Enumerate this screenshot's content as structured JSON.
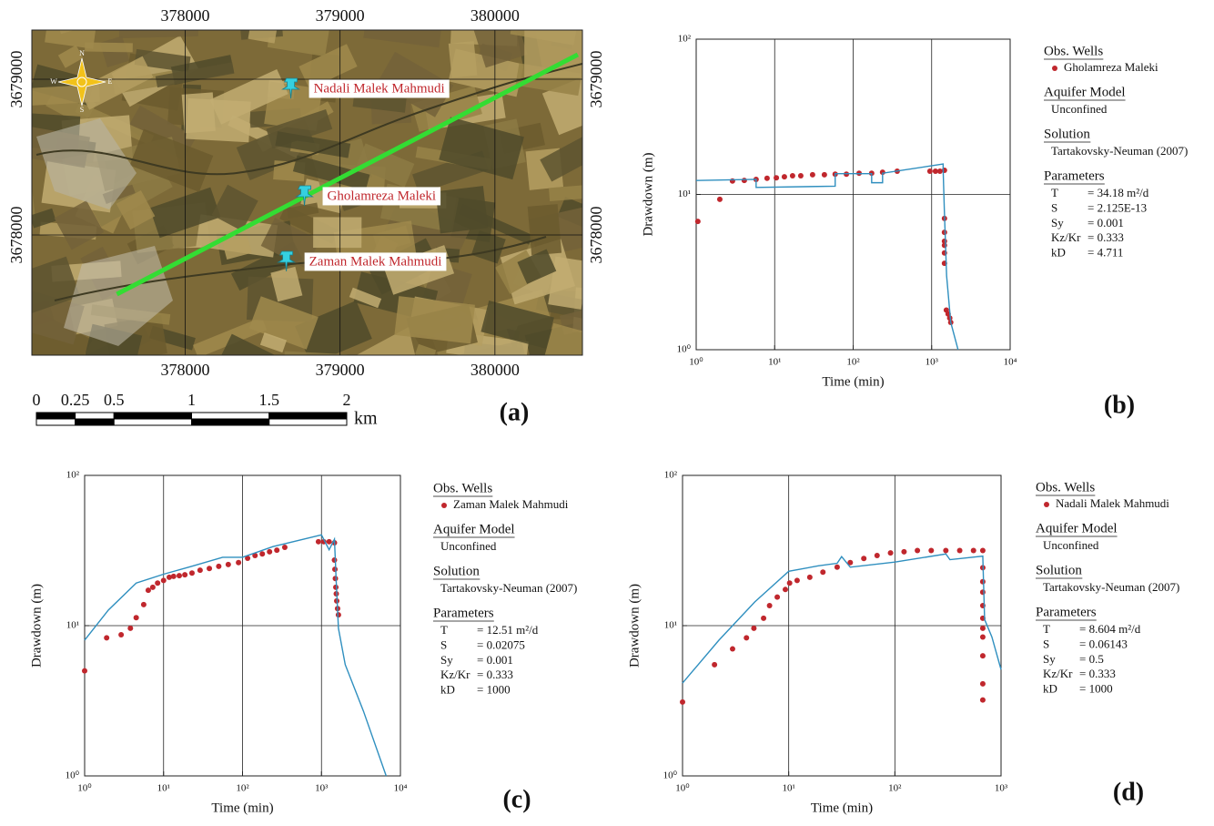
{
  "map": {
    "panel": "(a)",
    "xlim": [
      377010,
      380565
    ],
    "ylim": [
      3677228,
      3679316
    ],
    "xticks": [
      378000,
      379000,
      380000
    ],
    "yticks": [
      3679000,
      3678000
    ],
    "compass": [
      "N",
      "E",
      "S",
      "W"
    ],
    "wells": [
      {
        "name": "Nadali Malek Mahmudi",
        "x": 378688,
        "y": 3678924
      },
      {
        "name": "Gholamreza Maleki",
        "x": 378776,
        "y": 3678234
      },
      {
        "name": "Zaman Malek Mahmudi",
        "x": 378659,
        "y": 3677813
      }
    ],
    "section_line": {
      "color": "#33dd33",
      "x": [
        377559,
        380535
      ],
      "y": [
        3677620,
        3679158
      ]
    },
    "scale_bar": {
      "ticks": [
        0,
        0.25,
        0.5,
        1,
        1.5,
        2
      ],
      "unit": "km"
    }
  },
  "chart_data": [
    {
      "type": "line",
      "panel": "(b)",
      "xlabel": "Time (min)",
      "ylabel": "Drawdown (m)",
      "log_x": true,
      "log_y": true,
      "grid": true,
      "xlim": [
        1,
        10000
      ],
      "ylim": [
        1,
        100
      ],
      "xticks": [
        {
          "value": 1,
          "label": "10⁰"
        },
        {
          "value": 10,
          "label": "10¹"
        },
        {
          "value": 100,
          "label": "10²"
        },
        {
          "value": 1000,
          "label": "10³"
        },
        {
          "value": 10000,
          "label": "10⁴"
        }
      ],
      "yticks": [
        {
          "value": 1,
          "label": "10⁰"
        },
        {
          "value": 10,
          "label": "10¹"
        },
        {
          "value": 100,
          "label": "10²"
        }
      ],
      "series": [
        {
          "name": "Gholamreza Maleki",
          "color": "#c0272d",
          "marker": true,
          "x": [
            1.05,
            2.0,
            2.9,
            4.1,
            5.8,
            8.0,
            10.5,
            13.3,
            16.9,
            21.5,
            30.4,
            43,
            59,
            82,
            119,
            172,
            237,
            364,
            951,
            1117,
            1275,
            1456,
            1456,
            1456,
            1456,
            1456,
            1456,
            1456,
            1538,
            1620,
            1700,
            1750
          ],
          "values": [
            6.7,
            9.3,
            12.2,
            12.3,
            12.5,
            12.7,
            12.8,
            13.0,
            13.2,
            13.2,
            13.4,
            13.4,
            13.5,
            13.5,
            13.7,
            13.7,
            13.9,
            14.1,
            14.1,
            14.1,
            14.1,
            14.3,
            7.0,
            5.7,
            5.0,
            4.7,
            4.2,
            3.6,
            1.8,
            1.7,
            1.6,
            1.5
          ]
        },
        {
          "color": "#2f8fbf",
          "marker": false,
          "x": [
            1,
            5.8,
            5.8,
            59,
            59,
            172,
            172,
            237,
            237,
            1400,
            1400,
            1450,
            1550,
            1750,
            2170
          ],
          "values": [
            12.3,
            12.5,
            11.1,
            11.3,
            13.6,
            13.6,
            11.9,
            11.9,
            13.7,
            15.7,
            14.5,
            8,
            3.0,
            1.5,
            1.0
          ]
        }
      ],
      "legend": {
        "title": "Obs. Wells",
        "sections": [
          {
            "heading": "Aquifer Model",
            "lines": [
              "Unconfined"
            ]
          },
          {
            "heading": "Solution",
            "lines": [
              "Tartakovsky-Neuman (2007)"
            ]
          },
          {
            "heading": "Parameters",
            "rows": [
              [
                "T",
                "= 34.18 m²/d"
              ],
              [
                "S",
                "= 2.125E-13"
              ],
              [
                "Sy",
                "= 0.001"
              ],
              [
                "Kz/Kr",
                "= 0.333"
              ],
              [
                "kD",
                "= 4.711"
              ]
            ]
          }
        ]
      }
    },
    {
      "type": "line",
      "panel": "(c)",
      "xlabel": "Time (min)",
      "ylabel": "Drawdown (m)",
      "log_x": true,
      "log_y": true,
      "grid": true,
      "xlim": [
        1,
        10000
      ],
      "ylim": [
        1,
        100
      ],
      "xticks": [
        {
          "value": 1,
          "label": "10⁰"
        },
        {
          "value": 10,
          "label": "10¹"
        },
        {
          "value": 100,
          "label": "10²"
        },
        {
          "value": 1000,
          "label": "10³"
        },
        {
          "value": 10000,
          "label": "10⁴"
        }
      ],
      "yticks": [
        {
          "value": 1,
          "label": "10⁰"
        },
        {
          "value": 10,
          "label": "10¹"
        },
        {
          "value": 100,
          "label": "10²"
        }
      ],
      "series": [
        {
          "name": "Zaman Malek Mahmudi",
          "color": "#c0272d",
          "marker": true,
          "x": [
            1,
            1.9,
            2.9,
            3.8,
            4.5,
            5.6,
            6.4,
            7.3,
            8.4,
            10,
            11.8,
            13.4,
            15.8,
            18.6,
            22.9,
            29,
            38,
            50,
            66,
            89,
            116,
            144,
            178,
            220,
            272,
            343,
            915,
            1070,
            1250,
            1460,
            1460,
            1480,
            1500,
            1520,
            1540,
            1560,
            1600,
            1640
          ],
          "values": [
            5.0,
            8.3,
            8.7,
            9.6,
            11.3,
            13.8,
            17.2,
            18,
            19.2,
            20,
            21,
            21.3,
            21.5,
            21.8,
            22.4,
            23.4,
            24,
            24.8,
            25.5,
            26.3,
            28.1,
            29.3,
            30,
            31,
            31.8,
            33.2,
            36.2,
            36.2,
            36.2,
            35.6,
            27.3,
            23.7,
            20.6,
            18,
            16.3,
            14.6,
            13.0,
            11.8
          ]
        },
        {
          "color": "#2f8fbf",
          "marker": false,
          "x": [
            1,
            2,
            4.5,
            10,
            22,
            56,
            100,
            243,
            1000,
            1250,
            1460,
            1540,
            1640,
            2000,
            3400,
            6600
          ],
          "values": [
            8.0,
            12.7,
            19.2,
            22,
            24.7,
            28.5,
            28.5,
            33.6,
            40.2,
            32,
            37.6,
            19.3,
            9.6,
            5.5,
            2.7,
            1.0
          ]
        }
      ],
      "legend": {
        "title": "Obs. Wells",
        "sections": [
          {
            "heading": "Aquifer Model",
            "lines": [
              "Unconfined"
            ]
          },
          {
            "heading": "Solution",
            "lines": [
              "Tartakovsky-Neuman (2007)"
            ]
          },
          {
            "heading": "Parameters",
            "rows": [
              [
                "T",
                "= 12.51 m²/d"
              ],
              [
                "S",
                "= 0.02075"
              ],
              [
                "Sy",
                "= 0.001"
              ],
              [
                "Kz/Kr",
                "= 0.333"
              ],
              [
                "kD",
                "= 1000"
              ]
            ]
          }
        ]
      }
    },
    {
      "type": "line",
      "panel": "(d)",
      "xlabel": "Time (min)",
      "ylabel": "Drawdown (m)",
      "log_x": true,
      "log_y": true,
      "grid": true,
      "xlim": [
        1,
        1000
      ],
      "ylim": [
        1,
        100
      ],
      "xticks": [
        {
          "value": 1,
          "label": "10⁰"
        },
        {
          "value": 10,
          "label": "10¹"
        },
        {
          "value": 100,
          "label": "10²"
        },
        {
          "value": 1000,
          "label": "10³"
        }
      ],
      "yticks": [
        {
          "value": 1,
          "label": "10⁰"
        },
        {
          "value": 10,
          "label": "10¹"
        },
        {
          "value": 100,
          "label": "10²"
        }
      ],
      "series": [
        {
          "name": "Nadali Malek Mahmudi",
          "color": "#c0272d",
          "marker": true,
          "x": [
            1,
            2,
            2.96,
            4,
            4.7,
            5.8,
            6.6,
            7.8,
            9.3,
            10.2,
            12,
            15.8,
            21,
            28.6,
            38,
            51,
            68,
            91,
            122,
            163,
            220,
            302,
            408,
            550,
            673,
            673,
            673,
            673,
            673,
            673,
            673,
            673,
            673,
            673,
            673
          ],
          "values": [
            3.1,
            5.5,
            7.0,
            8.3,
            9.6,
            11.2,
            13.6,
            15.5,
            17.4,
            19.2,
            20,
            21,
            22.7,
            24.5,
            26.3,
            28,
            29.3,
            30.5,
            31,
            31.6,
            31.6,
            31.6,
            31.6,
            31.6,
            31.6,
            24.3,
            19.6,
            16.7,
            13.6,
            11.2,
            9.6,
            8.4,
            6.3,
            4.1,
            3.2
          ]
        },
        {
          "color": "#2f8fbf",
          "marker": false,
          "x": [
            1,
            2.2,
            4.8,
            10,
            19,
            28.6,
            31.5,
            38,
            100,
            302,
            330,
            673,
            700,
            820,
            1000
          ],
          "values": [
            4.15,
            8.0,
            14.4,
            23,
            25,
            26,
            28.8,
            24.5,
            26.5,
            30,
            27.5,
            29,
            11,
            8.4,
            5.1
          ]
        }
      ],
      "legend": {
        "title": "Obs. Wells",
        "sections": [
          {
            "heading": "Aquifer Model",
            "lines": [
              "Unconfined"
            ]
          },
          {
            "heading": "Solution",
            "lines": [
              "Tartakovsky-Neuman (2007)"
            ]
          },
          {
            "heading": "Parameters",
            "rows": [
              [
                "T",
                "= 8.604 m²/d"
              ],
              [
                "S",
                "= 0.06143"
              ],
              [
                "Sy",
                "= 0.5"
              ],
              [
                "Kz/Kr",
                "= 0.333"
              ],
              [
                "kD",
                "= 1000"
              ]
            ]
          }
        ]
      }
    }
  ]
}
